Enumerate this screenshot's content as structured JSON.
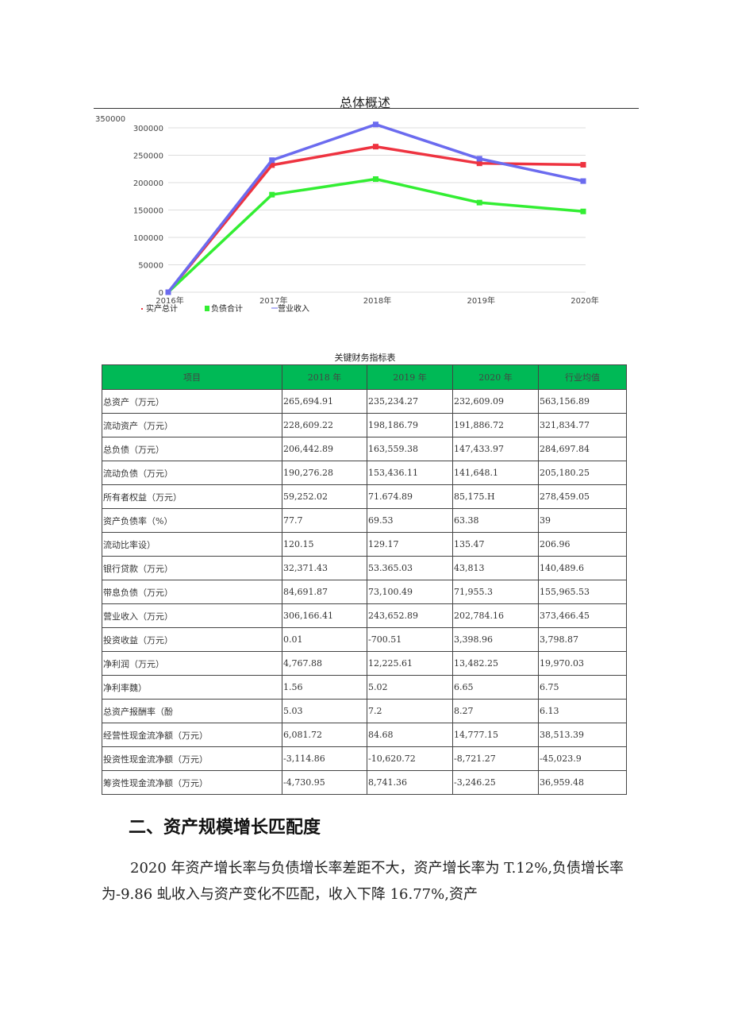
{
  "chart_data": {
    "type": "line",
    "title": "总体概述",
    "categories": [
      "2016年",
      "2017年",
      "2018年",
      "2019年",
      "2020年"
    ],
    "ylim": [
      0,
      350000
    ],
    "yticks": [
      0,
      50000,
      100000,
      150000,
      200000,
      250000,
      300000,
      350000
    ],
    "grid": true,
    "legend_position": "bottom-left",
    "series": [
      {
        "name": "实产总计",
        "color": "#ee3340",
        "values": [
          0,
          232000,
          265694.91,
          235234.27,
          232609.09
        ]
      },
      {
        "name": "负债合计",
        "color": "#33ee33",
        "values": [
          0,
          178000,
          206442.89,
          163559.38,
          147433.97
        ]
      },
      {
        "name": "营业收入",
        "color": "#6b6bef",
        "values": [
          0,
          241000,
          306166.41,
          243652.89,
          202784.16
        ]
      }
    ]
  },
  "table": {
    "title": "关键财务指标表",
    "header_color": "#00b956",
    "headers": [
      "项目",
      "2018 年",
      "2019 年",
      "2020 年",
      "行业均值"
    ],
    "rows": [
      [
        "总资产（万元）",
        "265,694.91",
        "235,234.27",
        "232,609.09",
        "563,156.89"
      ],
      [
        "流动资产（万元）",
        "228,609.22",
        "198,186.79",
        "191,886.72",
        "321,834.77"
      ],
      [
        "总负债（万元）",
        "206,442.89",
        "163,559.38",
        "147,433.97",
        "284,697.84"
      ],
      [
        "流动负债（万元）",
        "190,276.28",
        "153,436.11",
        "141,648.1",
        "205,180.25"
      ],
      [
        "所有者权益（万元）",
        "59,252.02",
        "71.674.89",
        "85,175.H",
        "278,459.05"
      ],
      [
        "资产负债率（%）",
        "77.7",
        "69.53",
        "63.38",
        "39"
      ],
      [
        "流动比率设）",
        "120.15",
        "129.17",
        "135.47",
        "206.96"
      ],
      [
        "银行贷款（万元）",
        "32,371.43",
        "53.365.03",
        "43,813",
        "140,489.6"
      ],
      [
        "带息负债（万元）",
        "84,691.87",
        "73,100.49",
        "71,955.3",
        "155,965.53"
      ],
      [
        "营业收入（万元）",
        "306,166.41",
        "243,652.89",
        "202,784.16",
        "373,466.45"
      ],
      [
        "投资收益（万元）",
        "0.01",
        "-700.51",
        "3,398.96",
        "3,798.87"
      ],
      [
        "净利润（万元）",
        "4,767.88",
        "12,225.61",
        "13,482.25",
        "19,970.03"
      ],
      [
        "净利率魏）",
        "1.56",
        "5.02",
        "6.65",
        "6.75"
      ],
      [
        "总资产报酬率（酚",
        "5.03",
        "7.2",
        "8.27",
        "6.13"
      ],
      [
        "经营性现金流净额（万元）",
        "6,081.72",
        "84.68",
        "14,777.15",
        "38,513.39"
      ],
      [
        "投资性现金流净额（万元）",
        "-3,114.86",
        "-10,620.72",
        "-8,721.27",
        "-45,023.9"
      ],
      [
        "筹资性现金流净额（万元）",
        "-4,730.95",
        "8,741.36",
        "-3,246.25",
        "36,959.48"
      ]
    ]
  },
  "section": {
    "heading": "二、资产规模增长匹配度",
    "paragraph": "2020 年资产增长率与负债增长率差距不大，资产增长率为 T.12%,负债增长率为-9.86 虬收入与资产变化不匹配，收入下降 16.77%,资产"
  }
}
